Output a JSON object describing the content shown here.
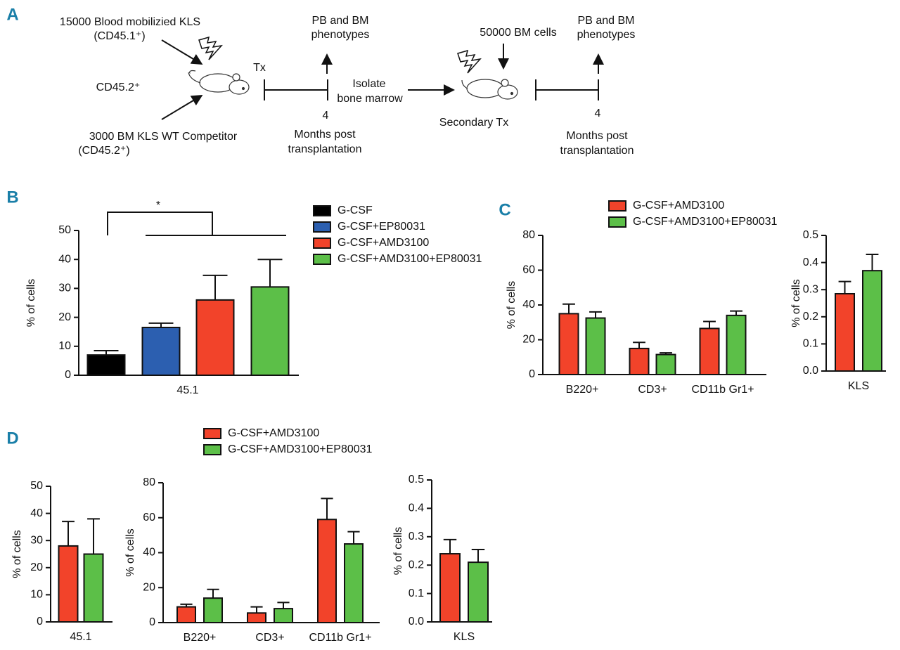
{
  "diagram": {
    "panel_label": "A",
    "labels": [
      "15000 Blood mobilizied KLS",
      "(CD45.1⁺)",
      "CD45.2⁺",
      "3000 BM KLS WT Competitor",
      "(CD45.2⁺)",
      "Tx",
      "PB and BM",
      "phenotypes",
      "4",
      "Months post",
      "transplantation",
      "Isolate",
      "bone marrow",
      "50000 BM cells",
      "Secondary Tx",
      "PB and BM",
      "phenotypes",
      "4",
      "Months post",
      "transplantation"
    ]
  },
  "chart_data": [
    {
      "type": "bar",
      "panel_label": "B",
      "ylabel": "% of cells",
      "annotation": "*",
      "legend": true,
      "categories": [
        "45.1"
      ],
      "series": [
        {
          "name": "G-CSF",
          "color": "#000000",
          "values": [
            7
          ],
          "errors": [
            1.5
          ]
        },
        {
          "name": "G-CSF+EP80031",
          "color": "#2c5fb0",
          "values": [
            16.5
          ],
          "errors": [
            1.5
          ]
        },
        {
          "name": "G-CSF+AMD3100",
          "color": "#f2432a",
          "values": [
            26
          ],
          "errors": [
            8.5
          ]
        },
        {
          "name": "G-CSF+AMD3100+EP80031",
          "color": "#5cbf48",
          "values": [
            30.5
          ],
          "errors": [
            9.5
          ]
        }
      ],
      "ylim": [
        0,
        50
      ],
      "yticks": [
        0,
        10,
        20,
        30,
        40,
        50
      ]
    },
    {
      "type": "bar",
      "panel_label": "C",
      "ylabel": "% of cells",
      "legend": true,
      "categories": [
        "B220+",
        "CD3+",
        "CD11b Gr1+"
      ],
      "series": [
        {
          "name": "G-CSF+AMD3100",
          "color": "#f2432a",
          "values": [
            35,
            15,
            26.5
          ],
          "errors": [
            5.5,
            3.5,
            4
          ]
        },
        {
          "name": "G-CSF+AMD3100+EP80031",
          "color": "#5cbf48",
          "values": [
            32.5,
            11.5,
            34
          ],
          "errors": [
            3.5,
            1,
            2.5
          ]
        }
      ],
      "ylim": [
        0,
        80
      ],
      "yticks": [
        0,
        20,
        40,
        60,
        80
      ]
    },
    {
      "type": "bar",
      "ylabel": "% of cells",
      "categories": [
        "KLS"
      ],
      "series": [
        {
          "color": "#f2432a",
          "values": [
            0.285
          ],
          "errors": [
            0.045
          ]
        },
        {
          "color": "#5cbf48",
          "values": [
            0.37
          ],
          "errors": [
            0.06
          ]
        }
      ],
      "ylim": [
        0,
        0.5
      ],
      "yticks": [
        {
          "value": 0,
          "label": "0.0"
        },
        0.1,
        0.2,
        0.3,
        0.4,
        0.5
      ]
    },
    {
      "type": "bar",
      "panel_label": "D",
      "ylabel": "% of cells",
      "legend": true,
      "categories": [
        "45.1"
      ],
      "series": [
        {
          "name": "G-CSF+AMD3100",
          "color": "#f2432a",
          "values": [
            28
          ],
          "errors": [
            9
          ]
        },
        {
          "name": "G-CSF+AMD3100+EP80031",
          "color": "#5cbf48",
          "values": [
            25
          ],
          "errors": [
            13
          ]
        }
      ],
      "ylim": [
        0,
        50
      ],
      "yticks": [
        0,
        10,
        20,
        30,
        40,
        50
      ]
    },
    {
      "type": "bar",
      "ylabel": "% of cells",
      "categories": [
        "B220+",
        "CD3+",
        "CD11b Gr1+"
      ],
      "series": [
        {
          "color": "#f2432a",
          "values": [
            9,
            5.5,
            59
          ],
          "errors": [
            1.5,
            3.5,
            12
          ]
        },
        {
          "color": "#5cbf48",
          "values": [
            14,
            8,
            45
          ],
          "errors": [
            5,
            3.5,
            7
          ]
        }
      ],
      "ylim": [
        0,
        80
      ],
      "yticks": [
        0,
        20,
        40,
        60,
        80
      ]
    },
    {
      "type": "bar",
      "ylabel": "% of cells",
      "categories": [
        "KLS"
      ],
      "series": [
        {
          "color": "#f2432a",
          "values": [
            0.24
          ],
          "errors": [
            0.05
          ]
        },
        {
          "color": "#5cbf48",
          "values": [
            0.21
          ],
          "errors": [
            0.045
          ]
        }
      ],
      "ylim": [
        0,
        0.5
      ],
      "yticks": [
        {
          "value": 0,
          "label": "0.0"
        },
        0.1,
        0.2,
        0.3,
        0.4,
        0.5
      ]
    }
  ]
}
